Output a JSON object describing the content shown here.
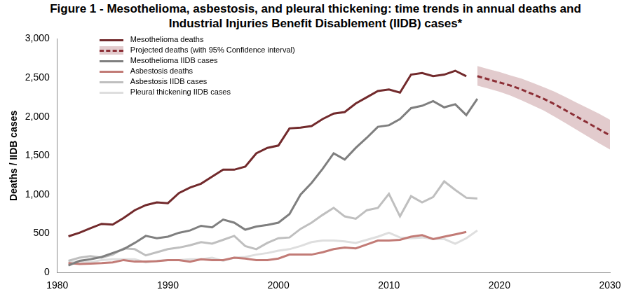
{
  "chart_data": {
    "type": "line",
    "title": "Figure 1 - Mesothelioma, asbestosis, and pleural thickening: time trends in annual deaths and Industrial Injuries Benefit Disablement (IIDB) cases*",
    "y_label": "Deaths / IIDB cases",
    "xlim": [
      1980,
      2030
    ],
    "xticks": [
      1980,
      1990,
      2000,
      2010,
      2020,
      2030
    ],
    "ylim": [
      0,
      3000
    ],
    "yticks": [
      0,
      500,
      {
        "value": 1000,
        "label": "1,000"
      },
      {
        "value": 1500,
        "label": "1,500"
      },
      {
        "value": 2000,
        "label": "2,000"
      },
      {
        "value": 2500,
        "label": "2,500"
      },
      {
        "value": 3000,
        "label": "3,000"
      }
    ],
    "grid": false,
    "legend": "upper left",
    "series": [
      {
        "name": "Mesothelioma deaths",
        "color": "#722a2c",
        "line_style": "solid",
        "x": [
          1981,
          1982,
          1983,
          1984,
          1985,
          1986,
          1987,
          1988,
          1989,
          1990,
          1991,
          1992,
          1993,
          1994,
          1995,
          1996,
          1997,
          1998,
          1999,
          2000,
          2001,
          2002,
          2003,
          2004,
          2005,
          2006,
          2007,
          2008,
          2009,
          2010,
          2011,
          2012,
          2013,
          2014,
          2015,
          2016,
          2017
        ],
        "values": [
          465,
          510,
          570,
          625,
          615,
          700,
          800,
          865,
          900,
          890,
          1020,
          1090,
          1140,
          1230,
          1320,
          1320,
          1360,
          1530,
          1600,
          1630,
          1850,
          1860,
          1880,
          1970,
          2040,
          2060,
          2170,
          2250,
          2330,
          2350,
          2310,
          2540,
          2560,
          2520,
          2540,
          2590,
          2520
        ]
      },
      {
        "name": "Projected deaths (with 95% Confidence interval)",
        "color": "#8c2f36",
        "line_style": "dashed",
        "x": [
          2018,
          2019,
          2020,
          2021,
          2022,
          2023,
          2024,
          2025,
          2026,
          2027,
          2028,
          2029,
          2030
        ],
        "values": [
          2520,
          2480,
          2440,
          2400,
          2350,
          2290,
          2230,
          2160,
          2080,
          2000,
          1920,
          1840,
          1760
        ],
        "lower": [
          2400,
          2360,
          2320,
          2270,
          2210,
          2145,
          2080,
          2000,
          1915,
          1830,
          1745,
          1660,
          1580
        ],
        "upper": [
          2650,
          2610,
          2575,
          2530,
          2490,
          2435,
          2380,
          2320,
          2250,
          2180,
          2110,
          2040,
          1960
        ]
      },
      {
        "name": "Mesothelioma IIDB cases",
        "color": "#7f7f7f",
        "line_style": "solid",
        "x": [
          1981,
          1982,
          1983,
          1984,
          1985,
          1986,
          1987,
          1988,
          1989,
          1990,
          1991,
          1992,
          1993,
          1994,
          1995,
          1996,
          1997,
          1998,
          1999,
          2000,
          2001,
          2002,
          2003,
          2004,
          2005,
          2006,
          2007,
          2008,
          2009,
          2010,
          2011,
          2012,
          2013,
          2014,
          2015,
          2016,
          2017,
          2018
        ],
        "values": [
          90,
          150,
          170,
          200,
          250,
          300,
          380,
          470,
          440,
          460,
          510,
          540,
          600,
          580,
          680,
          640,
          550,
          590,
          610,
          640,
          750,
          1000,
          1150,
          1330,
          1530,
          1450,
          1600,
          1730,
          1870,
          1890,
          1970,
          2110,
          2140,
          2200,
          2120,
          2160,
          2020,
          2230
        ]
      },
      {
        "name": "Asbestosis deaths",
        "color": "#c27b76",
        "line_style": "solid",
        "x": [
          1981,
          1982,
          1983,
          1984,
          1985,
          1986,
          1987,
          1988,
          1989,
          1990,
          1991,
          1992,
          1993,
          1994,
          1995,
          1996,
          1997,
          1998,
          1999,
          2000,
          2001,
          2002,
          2003,
          2004,
          2005,
          2006,
          2007,
          2008,
          2009,
          2010,
          2011,
          2012,
          2013,
          2014,
          2015,
          2016,
          2017
        ],
        "values": [
          120,
          110,
          115,
          120,
          130,
          160,
          140,
          140,
          145,
          160,
          160,
          140,
          170,
          160,
          160,
          190,
          180,
          160,
          160,
          180,
          230,
          230,
          230,
          260,
          300,
          320,
          310,
          360,
          410,
          410,
          420,
          460,
          480,
          430,
          460,
          490,
          520
        ]
      },
      {
        "name": "Asbestosis IIDB cases",
        "color": "#bfbfbf",
        "line_style": "solid",
        "x": [
          1981,
          1982,
          1983,
          1984,
          1985,
          1986,
          1987,
          1988,
          1989,
          1990,
          1991,
          1992,
          1993,
          1994,
          1995,
          1996,
          1997,
          1998,
          1999,
          2000,
          2001,
          2002,
          2003,
          2004,
          2005,
          2006,
          2007,
          2008,
          2009,
          2010,
          2011,
          2012,
          2013,
          2014,
          2015,
          2016,
          2017,
          2018
        ],
        "values": [
          150,
          190,
          210,
          190,
          230,
          310,
          300,
          220,
          260,
          300,
          320,
          350,
          390,
          370,
          420,
          470,
          340,
          300,
          380,
          440,
          450,
          560,
          640,
          740,
          830,
          720,
          690,
          800,
          830,
          1010,
          720,
          980,
          900,
          970,
          1170,
          1060,
          960,
          950
        ]
      },
      {
        "name": "Pleural thickening IIDB cases",
        "color": "#dedede",
        "line_style": "solid",
        "x": [
          1981,
          1982,
          1983,
          1984,
          1985,
          1986,
          1987,
          1988,
          1989,
          1990,
          1991,
          1992,
          1993,
          1994,
          1995,
          1996,
          1997,
          1998,
          1999,
          2000,
          2001,
          2002,
          2003,
          2004,
          2005,
          2006,
          2007,
          2008,
          2009,
          2010,
          2011,
          2012,
          2013,
          2014,
          2015,
          2016,
          2017,
          2018
        ],
        "values": [
          130,
          140,
          130,
          160,
          170,
          170,
          170,
          130,
          150,
          160,
          160,
          170,
          170,
          190,
          150,
          190,
          200,
          230,
          250,
          280,
          300,
          340,
          390,
          410,
          410,
          400,
          380,
          420,
          460,
          510,
          450,
          440,
          450,
          430,
          430,
          370,
          440,
          540
        ]
      }
    ]
  }
}
